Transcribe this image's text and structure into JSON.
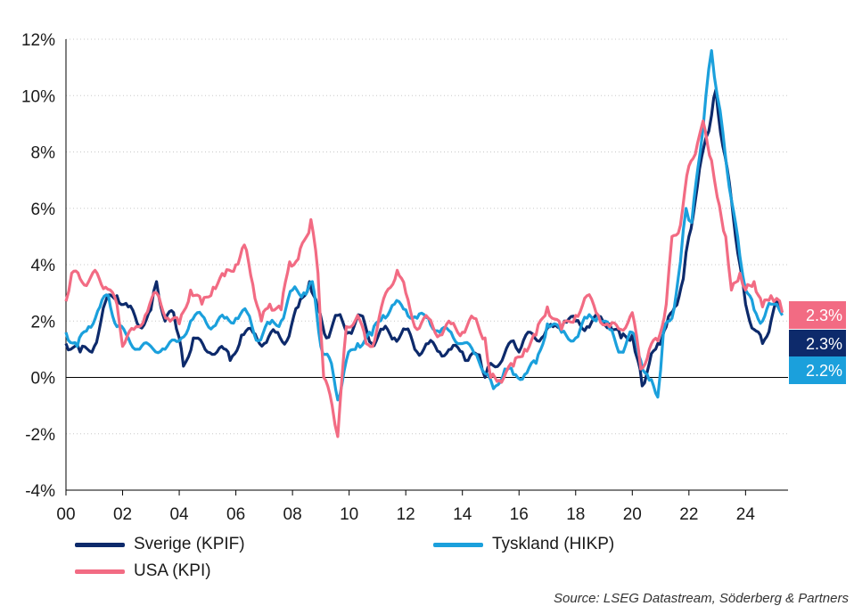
{
  "chart_data": {
    "type": "line",
    "title": "",
    "xlabel": "",
    "ylabel": "",
    "x_range": [
      2000,
      2025.5
    ],
    "ylim": [
      -4,
      12
    ],
    "y_ticks": [
      "-4%",
      "-2%",
      "0%",
      "2%",
      "4%",
      "6%",
      "8%",
      "10%",
      "12%"
    ],
    "y_tick_values": [
      -4,
      -2,
      0,
      2,
      4,
      6,
      8,
      10,
      12
    ],
    "x_ticks": [
      "00",
      "02",
      "04",
      "06",
      "08",
      "10",
      "12",
      "14",
      "16",
      "18",
      "20",
      "22",
      "24"
    ],
    "x_tick_values": [
      2000,
      2002,
      2004,
      2006,
      2008,
      2010,
      2012,
      2014,
      2016,
      2018,
      2020,
      2022,
      2024
    ],
    "grid": "horizontal dotted",
    "legend": "bottom",
    "series": [
      {
        "name": "Sverige (KPIF)",
        "color": "#0d2a6b",
        "end_label": "2.3%",
        "points": [
          [
            2000,
            1.2
          ],
          [
            2000.5,
            0.9
          ],
          [
            2001,
            1.1
          ],
          [
            2001.4,
            2.7
          ],
          [
            2001.8,
            2.9
          ],
          [
            2002.2,
            2.5
          ],
          [
            2002.6,
            1.8
          ],
          [
            2003,
            2.4
          ],
          [
            2003.2,
            3.4
          ],
          [
            2003.5,
            2.0
          ],
          [
            2003.8,
            2.3
          ],
          [
            2004,
            1.4
          ],
          [
            2004.15,
            0.4
          ],
          [
            2004.5,
            1.4
          ],
          [
            2005,
            0.9
          ],
          [
            2005.5,
            1.1
          ],
          [
            2005.8,
            0.6
          ],
          [
            2006.2,
            1.5
          ],
          [
            2006.6,
            1.6
          ],
          [
            2007,
            1.2
          ],
          [
            2007.4,
            1.6
          ],
          [
            2007.8,
            1.3
          ],
          [
            2008.2,
            2.5
          ],
          [
            2008.6,
            3.4
          ],
          [
            2008.9,
            2.4
          ],
          [
            2009.2,
            1.4
          ],
          [
            2009.6,
            2.2
          ],
          [
            2010,
            1.6
          ],
          [
            2010.4,
            2.2
          ],
          [
            2010.8,
            1.2
          ],
          [
            2011.2,
            1.7
          ],
          [
            2011.6,
            1.4
          ],
          [
            2012,
            1.7
          ],
          [
            2012.4,
            0.9
          ],
          [
            2012.8,
            1.2
          ],
          [
            2013.2,
            0.9
          ],
          [
            2013.6,
            1.0
          ],
          [
            2014,
            0.9
          ],
          [
            2014.2,
            0.6
          ],
          [
            2014.6,
            0.8
          ],
          [
            2014.8,
            0.0
          ],
          [
            2015,
            0.5
          ],
          [
            2015.4,
            0.6
          ],
          [
            2015.8,
            1.3
          ],
          [
            2016,
            0.9
          ],
          [
            2016.4,
            1.6
          ],
          [
            2016.8,
            1.4
          ],
          [
            2017.2,
            1.8
          ],
          [
            2017.6,
            2.0
          ],
          [
            2018,
            2.0
          ],
          [
            2018.4,
            1.8
          ],
          [
            2018.8,
            2.1
          ],
          [
            2019.2,
            1.9
          ],
          [
            2019.6,
            1.4
          ],
          [
            2020,
            1.5
          ],
          [
            2020.2,
            0.6
          ],
          [
            2020.35,
            -0.3
          ],
          [
            2020.6,
            0.5
          ],
          [
            2020.9,
            1.2
          ],
          [
            2021.2,
            1.8
          ],
          [
            2021.5,
            2.5
          ],
          [
            2021.8,
            3.5
          ],
          [
            2022,
            5.0
          ],
          [
            2022.3,
            6.8
          ],
          [
            2022.6,
            8.5
          ],
          [
            2022.8,
            9.3
          ],
          [
            2022.95,
            10.2
          ],
          [
            2023.2,
            8.2
          ],
          [
            2023.5,
            6.3
          ],
          [
            2023.8,
            4.0
          ],
          [
            2024,
            2.6
          ],
          [
            2024.3,
            1.7
          ],
          [
            2024.6,
            1.2
          ],
          [
            2024.9,
            2.0
          ],
          [
            2025.1,
            2.8
          ],
          [
            2025.3,
            2.3
          ]
        ]
      },
      {
        "name": "Tyskland (HIKP)",
        "color": "#1ba0dc",
        "end_label": "2.2%",
        "points": [
          [
            2000,
            1.6
          ],
          [
            2000.4,
            1.1
          ],
          [
            2000.8,
            1.8
          ],
          [
            2001.2,
            2.5
          ],
          [
            2001.5,
            2.9
          ],
          [
            2001.8,
            1.8
          ],
          [
            2002.2,
            1.4
          ],
          [
            2002.6,
            1.0
          ],
          [
            2003,
            1.1
          ],
          [
            2003.5,
            1.0
          ],
          [
            2004,
            1.3
          ],
          [
            2004.4,
            2.0
          ],
          [
            2004.8,
            2.2
          ],
          [
            2005.2,
            1.8
          ],
          [
            2005.6,
            2.1
          ],
          [
            2006,
            2.1
          ],
          [
            2006.4,
            2.3
          ],
          [
            2006.8,
            1.3
          ],
          [
            2007.2,
            1.9
          ],
          [
            2007.6,
            2.0
          ],
          [
            2008,
            3.1
          ],
          [
            2008.4,
            3.0
          ],
          [
            2008.7,
            3.4
          ],
          [
            2009,
            1.1
          ],
          [
            2009.3,
            0.7
          ],
          [
            2009.6,
            -0.8
          ],
          [
            2009.9,
            0.6
          ],
          [
            2010.3,
            1.2
          ],
          [
            2010.8,
            1.5
          ],
          [
            2011.2,
            2.2
          ],
          [
            2011.6,
            2.6
          ],
          [
            2012,
            2.4
          ],
          [
            2012.4,
            2.1
          ],
          [
            2012.8,
            2.1
          ],
          [
            2013.2,
            1.6
          ],
          [
            2013.6,
            1.6
          ],
          [
            2014,
            1.2
          ],
          [
            2014.5,
            0.8
          ],
          [
            2014.9,
            0.1
          ],
          [
            2015.1,
            -0.4
          ],
          [
            2015.5,
            0.3
          ],
          [
            2015.8,
            0.1
          ],
          [
            2016.2,
            0.1
          ],
          [
            2016.6,
            0.5
          ],
          [
            2017,
            1.9
          ],
          [
            2017.5,
            1.6
          ],
          [
            2018,
            1.4
          ],
          [
            2018.4,
            2.1
          ],
          [
            2018.8,
            2.2
          ],
          [
            2019.2,
            1.7
          ],
          [
            2019.6,
            0.9
          ],
          [
            2020,
            1.6
          ],
          [
            2020.3,
            0.6
          ],
          [
            2020.6,
            -0.1
          ],
          [
            2020.9,
            -0.7
          ],
          [
            2021.1,
            1.6
          ],
          [
            2021.4,
            2.1
          ],
          [
            2021.7,
            4.1
          ],
          [
            2021.9,
            6.0
          ],
          [
            2022.1,
            5.5
          ],
          [
            2022.4,
            8.0
          ],
          [
            2022.6,
            10.0
          ],
          [
            2022.8,
            11.6
          ],
          [
            2023,
            10.0
          ],
          [
            2023.2,
            8.7
          ],
          [
            2023.5,
            6.3
          ],
          [
            2023.8,
            4.3
          ],
          [
            2024,
            3.1
          ],
          [
            2024.3,
            2.4
          ],
          [
            2024.6,
            2.0
          ],
          [
            2024.9,
            2.6
          ],
          [
            2025.1,
            2.6
          ],
          [
            2025.3,
            2.2
          ]
        ]
      },
      {
        "name": "USA (KPI)",
        "color": "#f26b83",
        "end_label": "2.3%",
        "points": [
          [
            2000,
            2.7
          ],
          [
            2000.2,
            3.7
          ],
          [
            2000.5,
            3.5
          ],
          [
            2000.8,
            3.4
          ],
          [
            2001.1,
            3.7
          ],
          [
            2001.4,
            3.2
          ],
          [
            2001.8,
            2.6
          ],
          [
            2002,
            1.1
          ],
          [
            2002.4,
            1.7
          ],
          [
            2002.8,
            2.2
          ],
          [
            2003.2,
            3.0
          ],
          [
            2003.6,
            2.1
          ],
          [
            2004,
            1.9
          ],
          [
            2004.4,
            3.1
          ],
          [
            2004.8,
            2.6
          ],
          [
            2005.2,
            3.2
          ],
          [
            2005.6,
            3.6
          ],
          [
            2006,
            4.0
          ],
          [
            2006.3,
            4.7
          ],
          [
            2006.6,
            3.3
          ],
          [
            2006.9,
            2.0
          ],
          [
            2007.2,
            2.6
          ],
          [
            2007.6,
            2.4
          ],
          [
            2007.9,
            4.1
          ],
          [
            2008.2,
            4.2
          ],
          [
            2008.5,
            5.0
          ],
          [
            2008.65,
            5.6
          ],
          [
            2008.9,
            3.7
          ],
          [
            2009.1,
            0.0
          ],
          [
            2009.4,
            -1.0
          ],
          [
            2009.6,
            -2.1
          ],
          [
            2009.9,
            1.8
          ],
          [
            2010.3,
            2.2
          ],
          [
            2010.6,
            1.2
          ],
          [
            2010.9,
            1.3
          ],
          [
            2011.3,
            3.0
          ],
          [
            2011.7,
            3.8
          ],
          [
            2012,
            3.0
          ],
          [
            2012.4,
            1.7
          ],
          [
            2012.8,
            2.1
          ],
          [
            2013.2,
            1.5
          ],
          [
            2013.6,
            1.9
          ],
          [
            2014,
            1.6
          ],
          [
            2014.4,
            2.1
          ],
          [
            2014.8,
            1.4
          ],
          [
            2015,
            0.0
          ],
          [
            2015.3,
            -0.1
          ],
          [
            2015.8,
            0.4
          ],
          [
            2016.2,
            1.0
          ],
          [
            2016.6,
            1.5
          ],
          [
            2017,
            2.5
          ],
          [
            2017.5,
            1.7
          ],
          [
            2018,
            2.2
          ],
          [
            2018.4,
            2.9
          ],
          [
            2018.8,
            2.2
          ],
          [
            2019.2,
            1.8
          ],
          [
            2019.6,
            1.7
          ],
          [
            2020,
            2.3
          ],
          [
            2020.3,
            0.3
          ],
          [
            2020.6,
            1.0
          ],
          [
            2020.9,
            1.3
          ],
          [
            2021.2,
            2.6
          ],
          [
            2021.4,
            5.0
          ],
          [
            2021.7,
            5.4
          ],
          [
            2022,
            7.5
          ],
          [
            2022.3,
            8.3
          ],
          [
            2022.5,
            9.1
          ],
          [
            2022.8,
            7.7
          ],
          [
            2023,
            6.4
          ],
          [
            2023.3,
            5.0
          ],
          [
            2023.5,
            3.1
          ],
          [
            2023.8,
            3.7
          ],
          [
            2024,
            3.1
          ],
          [
            2024.3,
            3.4
          ],
          [
            2024.6,
            2.5
          ],
          [
            2024.9,
            2.9
          ],
          [
            2025.1,
            2.8
          ],
          [
            2025.3,
            2.3
          ]
        ]
      }
    ]
  },
  "legend": {
    "items": [
      {
        "label": "Sverige (KPIF)",
        "color": "#0d2a6b"
      },
      {
        "label": "Tyskland (HIKP)",
        "color": "#1ba0dc"
      },
      {
        "label": "USA (KPI)",
        "color": "#f26b83"
      }
    ]
  },
  "source": "Source: LSEG Datastream, Söderberg & Partners"
}
